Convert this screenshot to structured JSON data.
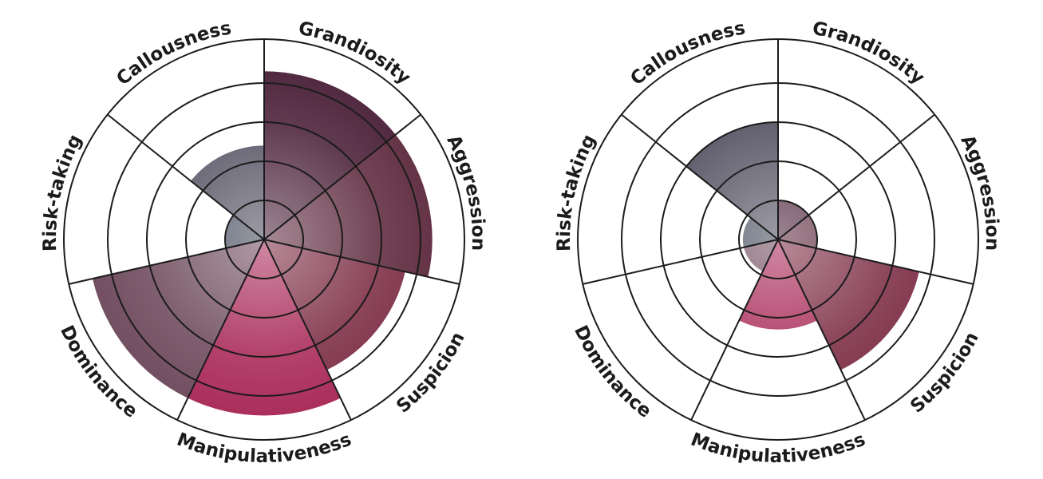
{
  "chart_data": [
    {
      "type": "polar-area",
      "categories": [
        "Grandiosity",
        "Aggression",
        "Suspicion",
        "Manipulativeness",
        "Dominance",
        "Risk-taking",
        "Callousness"
      ],
      "values": [
        4.3,
        4.3,
        3.7,
        4.5,
        4.5,
        1.0,
        2.4
      ],
      "rlim": [
        0,
        5
      ],
      "colors": [
        "#4a2038",
        "#5e2a3e",
        "#7c2c44",
        "#a82856",
        "#6e4a5c",
        "#3e4658",
        "#4e4a5c"
      ]
    },
    {
      "type": "polar-area",
      "categories": [
        "Grandiosity",
        "Aggression",
        "Suspicion",
        "Manipulativeness",
        "Dominance",
        "Risk-taking",
        "Callousness"
      ],
      "values": [
        1.0,
        1.0,
        3.7,
        2.3,
        0.9,
        0.9,
        3.0
      ],
      "rlim": [
        0,
        5
      ],
      "colors": [
        "#4a2038",
        "#5e2a3e",
        "#7c2c44",
        "#a82856",
        "#6e4a5c",
        "#3e4658",
        "#4e4a5c"
      ]
    }
  ]
}
